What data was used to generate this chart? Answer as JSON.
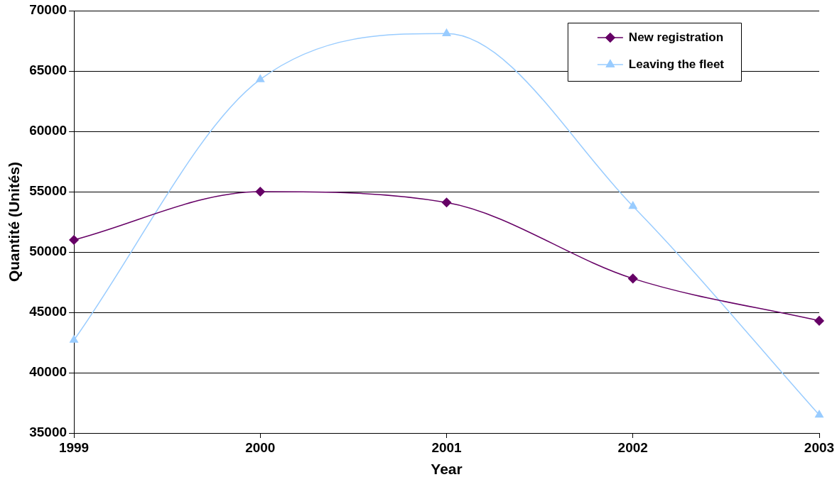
{
  "chart_data": {
    "type": "line",
    "xlabel": "Year",
    "ylabel": "Quantité (Unités)",
    "x": [
      1999,
      2000,
      2001,
      2002,
      2003
    ],
    "xlim": [
      1999,
      2003
    ],
    "xticks": [
      1999,
      2000,
      2001,
      2002,
      2003
    ],
    "ylim": [
      35000,
      70000
    ],
    "yticks": [
      35000,
      40000,
      45000,
      50000,
      55000,
      60000,
      65000,
      70000
    ],
    "grid": "y",
    "legend": "top right",
    "series": [
      {
        "name": "New registration",
        "color": "#660066",
        "marker": "diamond",
        "values": [
          51000,
          55000,
          54100,
          47800,
          44300
        ]
      },
      {
        "name": "Leaving the fleet",
        "color": "#99ccff",
        "marker": "triangle",
        "values": [
          42700,
          64300,
          68100,
          53800,
          36500
        ]
      }
    ]
  }
}
